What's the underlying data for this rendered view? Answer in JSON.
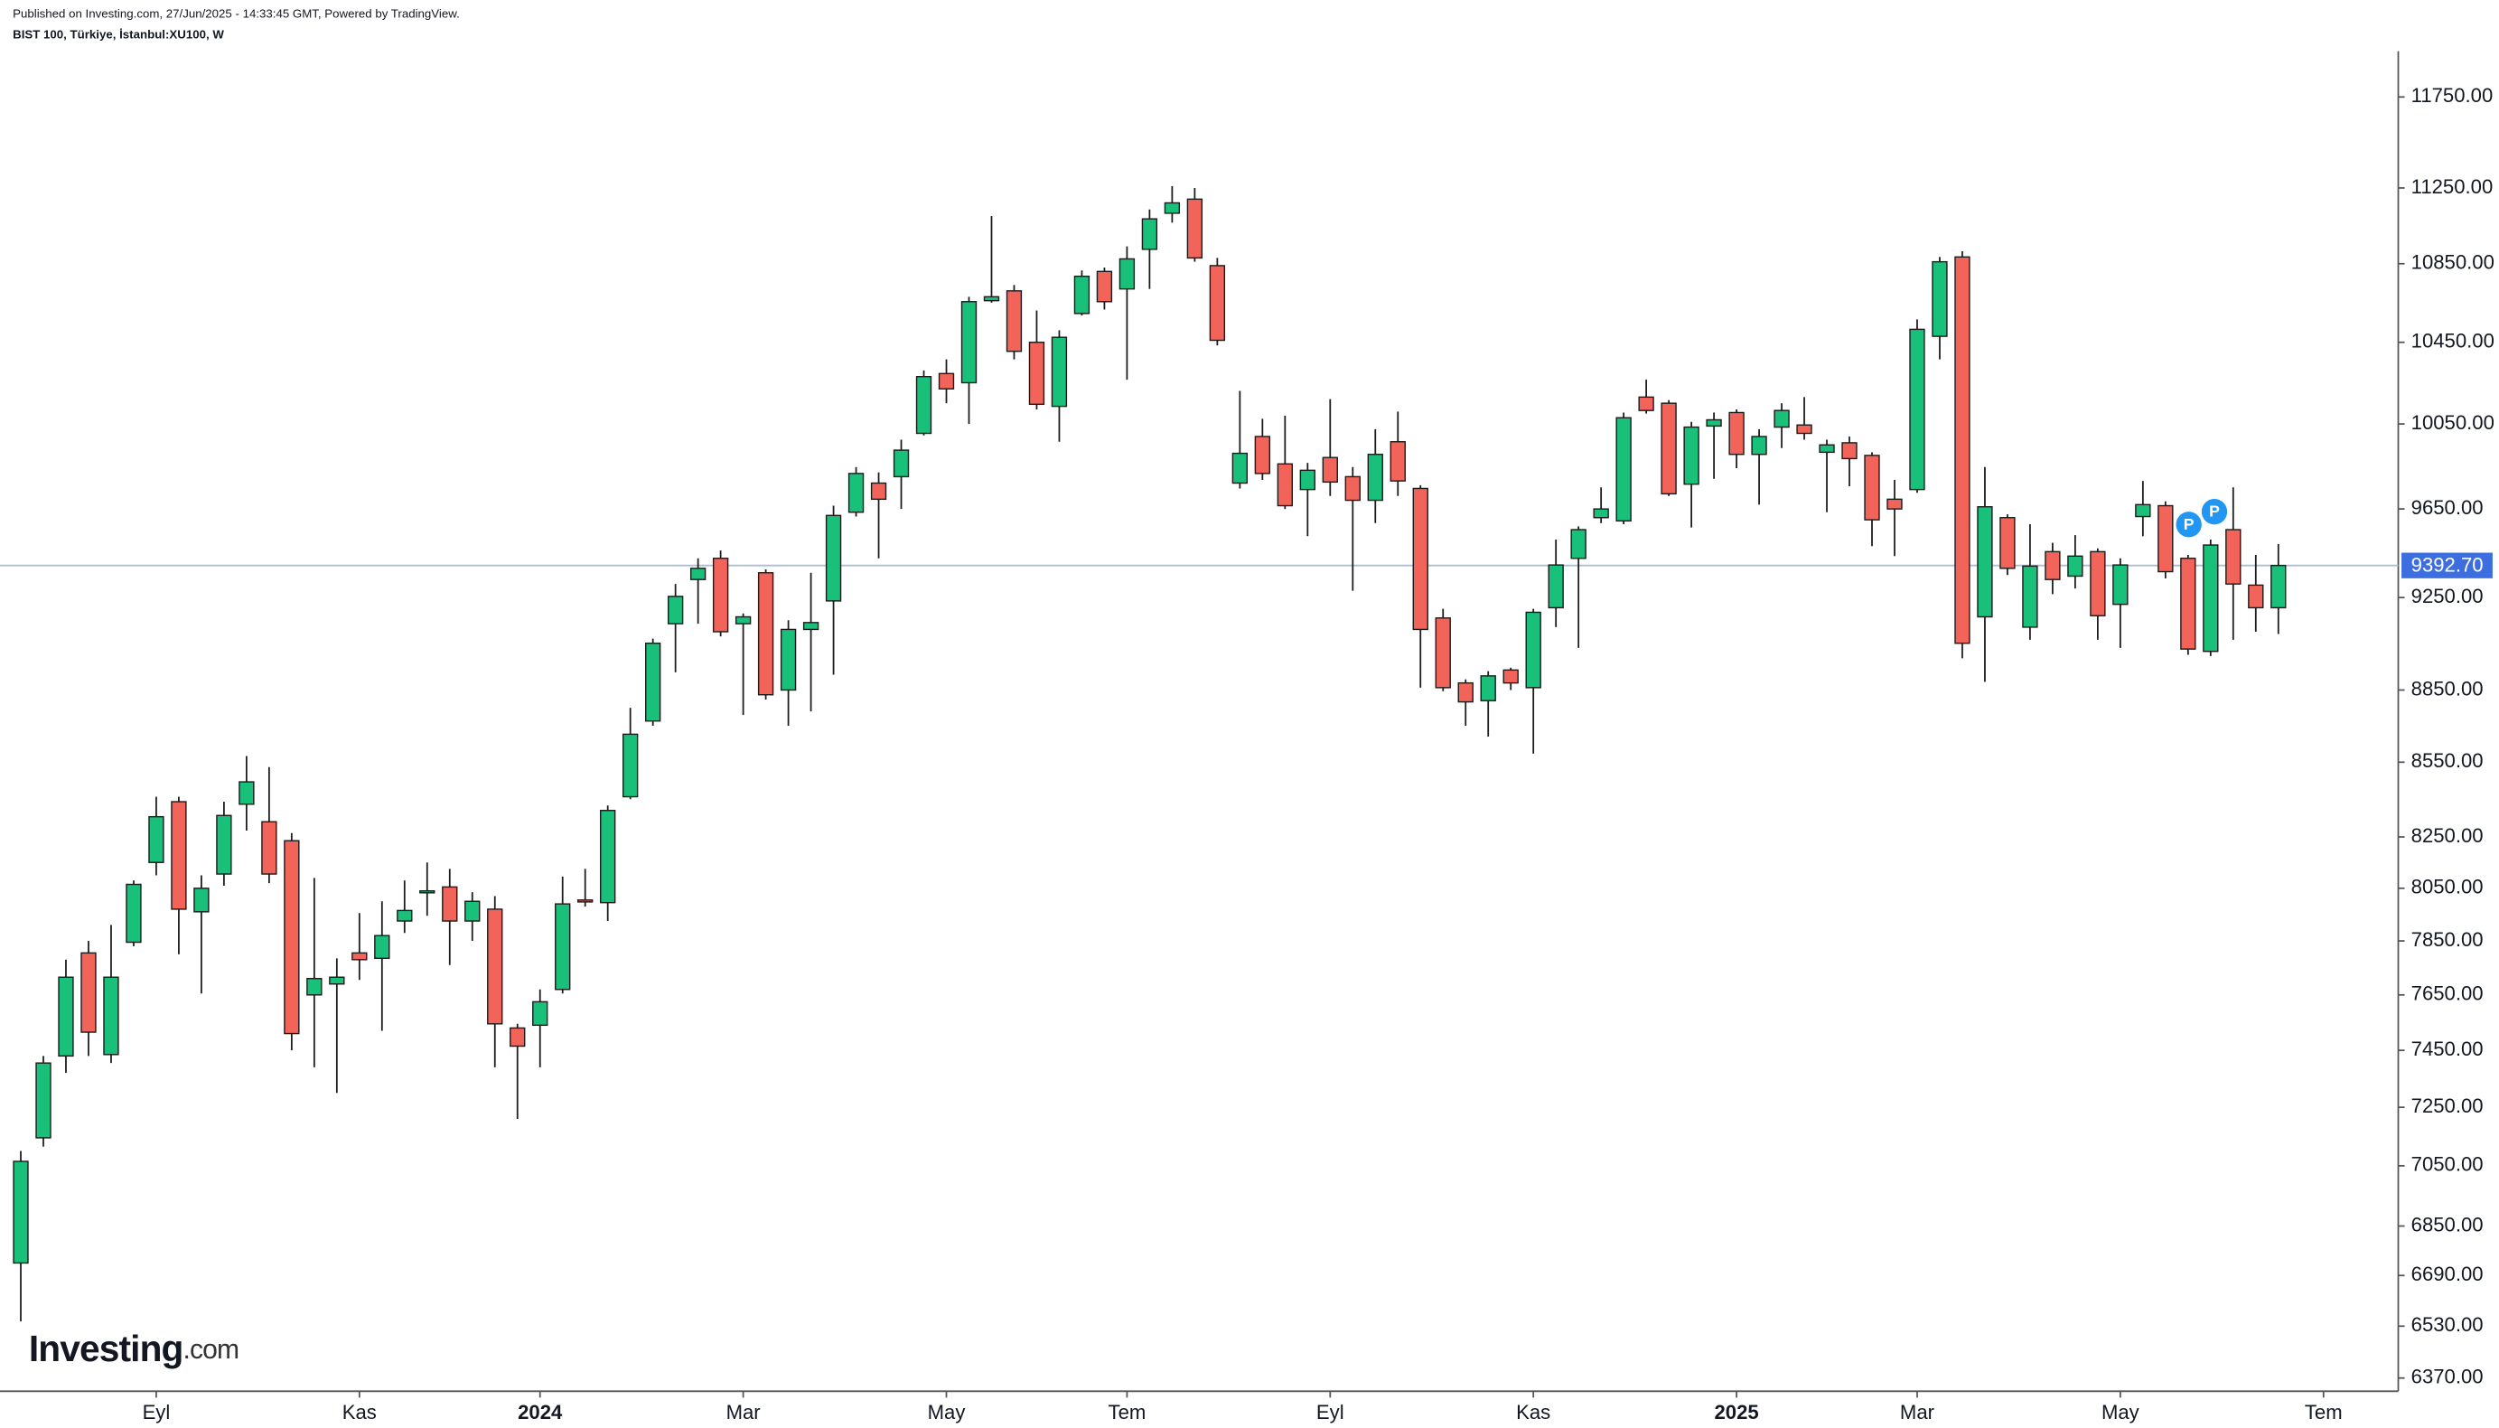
{
  "chart_data": {
    "type": "candlestick",
    "caption": "Published on Investing.com, 27/Jun/2025 - 14:33:45 GMT, Powered by TradingView.",
    "title": "BIST 100, Türkiye, İstanbul:XU100, W",
    "logo": {
      "main": "Investing",
      "suffix": ".com"
    },
    "log_scale": true,
    "grid": false,
    "up_color": "#18c07a",
    "down_color": "#f2645a",
    "border_color": "#1b1b1b",
    "categories": [
      null,
      null,
      null,
      null,
      null,
      null,
      "Eyl",
      null,
      null,
      null,
      null,
      null,
      null,
      null,
      null,
      "Kas",
      null,
      null,
      null,
      null,
      null,
      null,
      null,
      "2024",
      null,
      null,
      null,
      null,
      null,
      null,
      null,
      null,
      "Mar",
      null,
      null,
      null,
      null,
      null,
      null,
      null,
      null,
      "May",
      null,
      null,
      null,
      null,
      null,
      null,
      null,
      "Tem",
      null,
      null,
      null,
      null,
      null,
      null,
      null,
      null,
      "Eyl",
      null,
      null,
      null,
      null,
      null,
      null,
      null,
      null,
      "Kas",
      null,
      null,
      null,
      null,
      null,
      null,
      null,
      null,
      "2025",
      null,
      null,
      null,
      null,
      null,
      null,
      null,
      "Mar",
      null,
      null,
      null,
      null,
      null,
      null,
      null,
      null,
      "May",
      null,
      null,
      null,
      null,
      null,
      null,
      null,
      null,
      "Tem"
    ],
    "open": [
      6730,
      7145,
      7430,
      7805,
      7435,
      7845,
      8150,
      8390,
      7960,
      8105,
      8380,
      8310,
      8235,
      7650,
      7690,
      7805,
      7785,
      7925,
      8035,
      8055,
      7925,
      7970,
      7530,
      7540,
      7670,
      8005,
      7995,
      8410,
      8720,
      9135,
      9330,
      9425,
      9135,
      9360,
      8850,
      9110,
      9235,
      9635,
      9770,
      9800,
      10005,
      10295,
      10250,
      10660,
      10710,
      10450,
      10135,
      10595,
      10810,
      10720,
      10925,
      11115,
      11190,
      10840,
      9770,
      9990,
      9860,
      9740,
      9890,
      9800,
      9690,
      9965,
      9745,
      9160,
      8880,
      8805,
      8935,
      8860,
      9205,
      9425,
      9610,
      9595,
      10180,
      10150,
      9765,
      10040,
      10105,
      9905,
      10035,
      10045,
      9915,
      9960,
      9900,
      9695,
      9740,
      10480,
      10885,
      9165,
      9610,
      9120,
      9455,
      9345,
      9455,
      9220,
      9615,
      9665,
      9425,
      9015,
      9555,
      9305,
      9205,
      null,
      null
    ],
    "high": [
      7100,
      7430,
      7780,
      7850,
      7910,
      8080,
      8410,
      8410,
      8100,
      8390,
      8575,
      8530,
      8265,
      8090,
      7785,
      7955,
      8000,
      8080,
      8150,
      8125,
      8035,
      8020,
      7545,
      7670,
      8095,
      8125,
      8375,
      8775,
      9070,
      9310,
      9425,
      9460,
      9180,
      9375,
      9150,
      9360,
      9665,
      9845,
      9820,
      9975,
      10310,
      10365,
      10680,
      11100,
      10740,
      10610,
      10510,
      10815,
      10830,
      10940,
      11135,
      11260,
      11250,
      10880,
      10210,
      10075,
      10090,
      9865,
      10170,
      9845,
      10025,
      10110,
      9760,
      9200,
      8895,
      8930,
      8945,
      9200,
      9510,
      9570,
      9750,
      10105,
      10265,
      10165,
      10060,
      10105,
      10120,
      10025,
      10150,
      10180,
      9975,
      9990,
      9915,
      9785,
      10565,
      10885,
      10915,
      9845,
      9625,
      9580,
      9495,
      9530,
      9470,
      9425,
      9780,
      9685,
      9440,
      9510,
      9750,
      9440,
      9490,
      null,
      null
    ],
    "low": [
      6545,
      7115,
      7370,
      7430,
      7405,
      7830,
      8100,
      7800,
      7655,
      8060,
      8275,
      8070,
      7450,
      7390,
      7300,
      7705,
      7520,
      7880,
      7945,
      7760,
      7850,
      7390,
      7210,
      7390,
      7655,
      7980,
      7925,
      8400,
      8700,
      8925,
      9135,
      9080,
      8745,
      8810,
      8700,
      8760,
      8915,
      9615,
      9425,
      9650,
      9995,
      10150,
      10050,
      10650,
      10365,
      10120,
      9965,
      10585,
      10615,
      10265,
      10720,
      11065,
      10860,
      10435,
      9745,
      9785,
      9650,
      9525,
      9710,
      9280,
      9585,
      9710,
      8860,
      8845,
      8700,
      8655,
      8850,
      8585,
      9120,
      9030,
      9585,
      9580,
      10100,
      9710,
      9565,
      9790,
      9840,
      9670,
      9935,
      9975,
      9635,
      9755,
      9480,
      9435,
      9725,
      10365,
      8985,
      8885,
      9350,
      9065,
      9265,
      9290,
      9065,
      9030,
      9525,
      9335,
      9000,
      8995,
      9065,
      9100,
      9090,
      null,
      null
    ],
    "close": [
      7065,
      7405,
      7715,
      7515,
      7715,
      8065,
      8330,
      7970,
      8050,
      8335,
      8470,
      8105,
      7510,
      7710,
      7715,
      7780,
      7870,
      7965,
      8040,
      7925,
      8000,
      7545,
      7465,
      7625,
      7990,
      8000,
      8355,
      8665,
      9050,
      9255,
      9380,
      9100,
      9165,
      8830,
      9110,
      9140,
      9620,
      9815,
      9695,
      9925,
      10280,
      10220,
      10655,
      10680,
      10405,
      10145,
      10475,
      10785,
      10655,
      10875,
      11085,
      11170,
      10880,
      10460,
      9910,
      9815,
      9665,
      9830,
      9775,
      9690,
      9905,
      9780,
      9110,
      8860,
      8800,
      8910,
      8880,
      9185,
      9395,
      9555,
      9650,
      10080,
      10115,
      9720,
      10035,
      10070,
      9905,
      9990,
      10115,
      10005,
      9950,
      9885,
      9600,
      9650,
      10515,
      10860,
      9050,
      9660,
      9380,
      9390,
      9330,
      9435,
      9170,
      9395,
      9670,
      9365,
      9025,
      9485,
      9310,
      9205,
      9392.7,
      null,
      null
    ],
    "ylim": [
      6330,
      12010
    ],
    "yticks": [
      {
        "value": 11750,
        "label": "11750.00"
      },
      {
        "value": 11250,
        "label": "11250.00"
      },
      {
        "value": 10850,
        "label": "10850.00"
      },
      {
        "value": 10450,
        "label": "10450.00"
      },
      {
        "value": 10050,
        "label": "10050.00"
      },
      {
        "value": 9650,
        "label": "9650.00"
      },
      {
        "value": 9250,
        "label": "9250.00"
      },
      {
        "value": 8850,
        "label": "8850.00"
      },
      {
        "value": 8550,
        "label": "8550.00"
      },
      {
        "value": 8250,
        "label": "8250.00"
      },
      {
        "value": 8050,
        "label": "8050.00"
      },
      {
        "value": 7850,
        "label": "7850.00"
      },
      {
        "value": 7650,
        "label": "7650.00"
      },
      {
        "value": 7450,
        "label": "7450.00"
      },
      {
        "value": 7250,
        "label": "7250.00"
      },
      {
        "value": 7050,
        "label": "7050.00"
      },
      {
        "value": 6850,
        "label": "6850.00"
      },
      {
        "value": 6690,
        "label": "6690.00"
      },
      {
        "value": 6530,
        "label": "6530.00"
      },
      {
        "value": 6370,
        "label": "6370.00"
      }
    ],
    "last_price": {
      "value": 9392.7,
      "label": "9392.70",
      "color": "#3d6ee0",
      "line_color": "#a9bfd4"
    },
    "markers": [
      "P",
      "P"
    ],
    "marker_color": "#2196f3"
  }
}
